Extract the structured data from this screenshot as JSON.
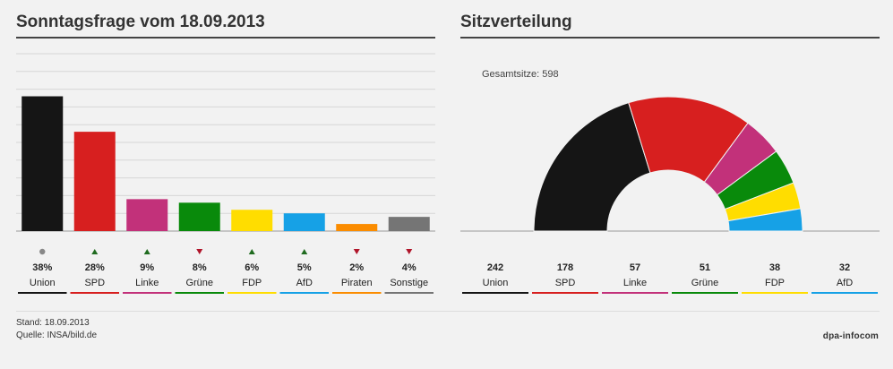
{
  "chart_data": [
    {
      "type": "bar",
      "title": "Sonntagsfrage vom 18.09.2013",
      "categories": [
        "Union",
        "SPD",
        "Linke",
        "Grüne",
        "FDP",
        "AfD",
        "Piraten",
        "Sonstige"
      ],
      "values": [
        38,
        28,
        9,
        8,
        6,
        5,
        2,
        4
      ],
      "value_labels": [
        "38%",
        "28%",
        "9%",
        "8%",
        "6%",
        "5%",
        "2%",
        "4%"
      ],
      "trends": [
        "neutral",
        "up",
        "up",
        "down",
        "up",
        "up",
        "down",
        "down"
      ],
      "colors": [
        "#151515",
        "#d71f1f",
        "#c2317a",
        "#098a0b",
        "#ffdd00",
        "#16a1e6",
        "#fb8c00",
        "#757575"
      ],
      "ylim": [
        0,
        50
      ],
      "grid": true
    },
    {
      "type": "pie",
      "title": "Sitzverteilung",
      "subtitle": "Gesamtsitze: 598",
      "categories": [
        "Union",
        "SPD",
        "Linke",
        "Grüne",
        "FDP",
        "AfD"
      ],
      "values": [
        242,
        178,
        57,
        51,
        38,
        32
      ],
      "value_labels": [
        "242",
        "178",
        "57",
        "51",
        "38",
        "32"
      ],
      "colors": [
        "#151515",
        "#d71f1f",
        "#c2317a",
        "#098a0b",
        "#ffdd00",
        "#16a1e6"
      ],
      "total": 598,
      "shape": "half-donut"
    }
  ],
  "footer": {
    "stand": "Stand: 18.09.2013",
    "quelle": "Quelle: INSA/bild.de",
    "logo": "dpa-infocom"
  },
  "trend_colors": {
    "up": "#1f6b1f",
    "down": "#b0152a",
    "neutral": "#888888"
  }
}
